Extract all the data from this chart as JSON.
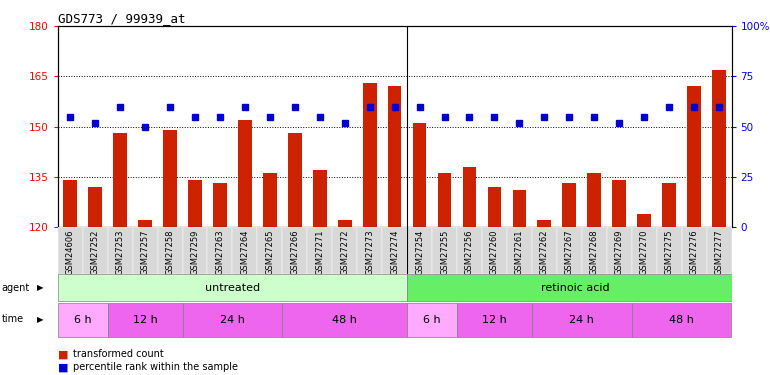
{
  "title": "GDS773 / 99939_at",
  "samples": [
    "GSM24606",
    "GSM27252",
    "GSM27253",
    "GSM27257",
    "GSM27258",
    "GSM27259",
    "GSM27263",
    "GSM27264",
    "GSM27265",
    "GSM27266",
    "GSM27271",
    "GSM27272",
    "GSM27273",
    "GSM27274",
    "GSM27254",
    "GSM27255",
    "GSM27256",
    "GSM27260",
    "GSM27261",
    "GSM27262",
    "GSM27267",
    "GSM27268",
    "GSM27269",
    "GSM27270",
    "GSM27275",
    "GSM27276",
    "GSM27277"
  ],
  "bar_values": [
    134,
    132,
    148,
    122,
    149,
    134,
    133,
    152,
    136,
    148,
    137,
    122,
    163,
    162,
    151,
    136,
    138,
    132,
    131,
    122,
    133,
    136,
    134,
    124,
    133,
    162,
    167
  ],
  "percentile_values_pct": [
    55,
    52,
    60,
    50,
    60,
    55,
    55,
    60,
    55,
    60,
    55,
    52,
    60,
    60,
    60,
    55,
    55,
    55,
    52,
    55,
    55,
    55,
    52,
    55,
    60,
    60,
    60
  ],
  "bar_color": "#cc2200",
  "dot_color": "#0000cc",
  "ylim_left": [
    120,
    180
  ],
  "ylim_right": [
    0,
    100
  ],
  "yticks_left": [
    120,
    135,
    150,
    165,
    180
  ],
  "yticks_right": [
    0,
    25,
    50,
    75,
    100
  ],
  "agent_untreated_count": 14,
  "agent_retinoic_count": 13,
  "time_groups_untreated": [
    {
      "label": "6 h",
      "start": 0,
      "end": 2
    },
    {
      "label": "12 h",
      "start": 2,
      "end": 5
    },
    {
      "label": "24 h",
      "start": 5,
      "end": 9
    },
    {
      "label": "48 h",
      "start": 9,
      "end": 14
    }
  ],
  "time_groups_retinoic": [
    {
      "label": "6 h",
      "start": 14,
      "end": 16
    },
    {
      "label": "12 h",
      "start": 16,
      "end": 19
    },
    {
      "label": "24 h",
      "start": 19,
      "end": 23
    },
    {
      "label": "48 h",
      "start": 23,
      "end": 27
    }
  ],
  "agent_color_untreated": "#ccffcc",
  "agent_color_retinoic": "#66ee66",
  "time_color_6h": "#ffaaff",
  "time_color_12h": "#ee66ee",
  "time_color_24h": "#ee66ee",
  "time_color_48h": "#ee66ee",
  "legend_bar_label": "transformed count",
  "legend_dot_label": "percentile rank within the sample",
  "background_color": "#ffffff",
  "plot_bg_color": "#ffffff",
  "xtick_bg": "#d8d8d8",
  "grid_color": "#000000"
}
